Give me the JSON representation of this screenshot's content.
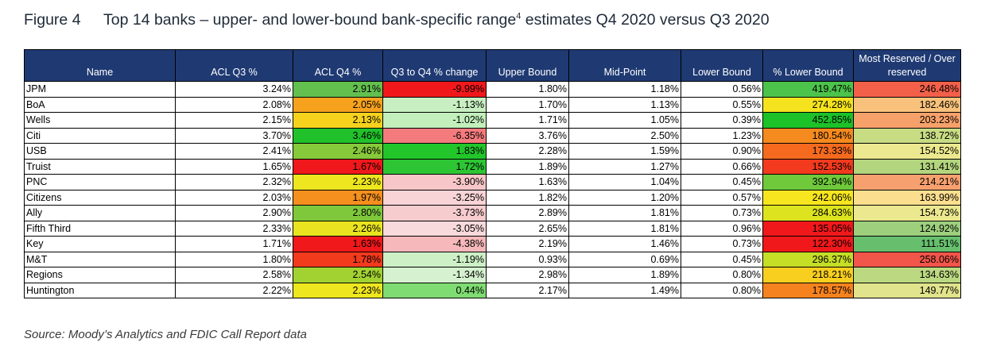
{
  "figure": {
    "label": "Figure 4",
    "title": "Top 14 banks – upper- and lower-bound bank-specific range",
    "title_superscript": "4",
    "title_suffix": " estimates Q4 2020 versus Q3 2020"
  },
  "chart_data": {
    "type": "table",
    "columns": [
      "Name",
      "ACL Q3 %",
      "ACL Q4 %",
      "Q3 to Q4 % change",
      "Upper Bound",
      "Mid-Point",
      "Lower Bound",
      "% Lower Bound",
      "Most Reserved / Over reserved"
    ],
    "rows": [
      {
        "name": "JPM",
        "cells": [
          "3.24%",
          "2.91%",
          "-9.99%",
          "1.80%",
          "1.18%",
          "0.56%",
          "419.47%",
          "246.48%"
        ],
        "colors": [
          "",
          "#63c04f",
          "#f0181b",
          "",
          "",
          "",
          "#4cc34a",
          "#f2604a"
        ]
      },
      {
        "name": "BoA",
        "cells": [
          "2.08%",
          "2.05%",
          "-1.13%",
          "1.70%",
          "1.13%",
          "0.55%",
          "274.28%",
          "182.46%"
        ],
        "colors": [
          "",
          "#f7a21d",
          "#c8efc1",
          "",
          "",
          "",
          "#f4e31e",
          "#f9c27c"
        ]
      },
      {
        "name": "Wells",
        "cells": [
          "2.15%",
          "2.13%",
          "-1.02%",
          "1.71%",
          "1.05%",
          "0.39%",
          "452.85%",
          "203.23%"
        ],
        "colors": [
          "",
          "#f6d21d",
          "#c2efbb",
          "",
          "",
          "",
          "#1dc128",
          "#f7a16a"
        ]
      },
      {
        "name": "Citi",
        "cells": [
          "3.70%",
          "3.46%",
          "-6.35%",
          "3.76%",
          "2.50%",
          "1.23%",
          "180.54%",
          "138.72%"
        ],
        "colors": [
          "",
          "#21c12b",
          "#f47b7d",
          "",
          "",
          "",
          "#f58a1e",
          "#c8dc84"
        ]
      },
      {
        "name": "USB",
        "cells": [
          "2.41%",
          "2.46%",
          "1.83%",
          "2.28%",
          "1.59%",
          "0.90%",
          "173.33%",
          "154.52%"
        ],
        "colors": [
          "",
          "#86c93a",
          "#22c62a",
          "",
          "",
          "",
          "#f56a1e",
          "#ece88f"
        ]
      },
      {
        "name": "Truist",
        "cells": [
          "1.65%",
          "1.67%",
          "1.72%",
          "1.89%",
          "1.27%",
          "0.66%",
          "152.53%",
          "131.41%"
        ],
        "colors": [
          "",
          "#f0181b",
          "#2dc534",
          "",
          "",
          "",
          "#f33a1e",
          "#b3d57e"
        ]
      },
      {
        "name": "PNC",
        "cells": [
          "2.32%",
          "2.23%",
          "-3.90%",
          "1.63%",
          "1.04%",
          "0.45%",
          "392.94%",
          "214.21%"
        ],
        "colors": [
          "",
          "#eee61f",
          "#f7c6c8",
          "",
          "",
          "",
          "#6fc93b",
          "#f6a06f"
        ]
      },
      {
        "name": "Citizens",
        "cells": [
          "2.03%",
          "1.97%",
          "-3.25%",
          "1.82%",
          "1.20%",
          "0.57%",
          "242.06%",
          "163.99%"
        ],
        "colors": [
          "",
          "#f58f1e",
          "#f8d4d6",
          "",
          "",
          "",
          "#f7e61f",
          "#fbdf8f"
        ]
      },
      {
        "name": "Ally",
        "cells": [
          "2.90%",
          "2.80%",
          "-3.73%",
          "2.89%",
          "1.81%",
          "0.73%",
          "284.63%",
          "154.73%"
        ],
        "colors": [
          "",
          "#7fc83c",
          "#f7ccce",
          "",
          "",
          "",
          "#dde41f",
          "#ece88f"
        ]
      },
      {
        "name": "Fifth Third",
        "cells": [
          "2.33%",
          "2.26%",
          "-3.05%",
          "2.65%",
          "1.81%",
          "0.96%",
          "135.05%",
          "124.92%"
        ],
        "colors": [
          "",
          "#e9e41f",
          "#f9dadc",
          "",
          "",
          "",
          "#f0181b",
          "#9dcf7d"
        ]
      },
      {
        "name": "Key",
        "cells": [
          "1.71%",
          "1.63%",
          "-4.38%",
          "2.19%",
          "1.46%",
          "0.73%",
          "122.30%",
          "111.51%"
        ],
        "colors": [
          "",
          "#f0181b",
          "#f6b8ba",
          "",
          "",
          "",
          "#f0181b",
          "#67bf6e"
        ]
      },
      {
        "name": "M&T",
        "cells": [
          "1.80%",
          "1.78%",
          "-1.19%",
          "0.93%",
          "0.69%",
          "0.45%",
          "296.37%",
          "258.06%"
        ],
        "colors": [
          "",
          "#f23a1d",
          "#cdf0c6",
          "",
          "",
          "",
          "#c5de26",
          "#f2554a"
        ]
      },
      {
        "name": "Regions",
        "cells": [
          "2.58%",
          "2.54%",
          "-1.34%",
          "2.98%",
          "1.89%",
          "0.80%",
          "218.21%",
          "134.63%"
        ],
        "colors": [
          "",
          "#a2d232",
          "#d6f1cf",
          "",
          "",
          "",
          "#f8cf1e",
          "#bcd981"
        ]
      },
      {
        "name": "Huntington",
        "cells": [
          "2.22%",
          "2.23%",
          "0.44%",
          "2.17%",
          "1.49%",
          "0.80%",
          "178.57%",
          "149.77%"
        ],
        "colors": [
          "",
          "#eee61f",
          "#7fdc72",
          "",
          "",
          "",
          "#f5821e",
          "#e1e38d"
        ]
      }
    ]
  },
  "source": "Source: Moody’s Analytics and FDIC Call Report data"
}
